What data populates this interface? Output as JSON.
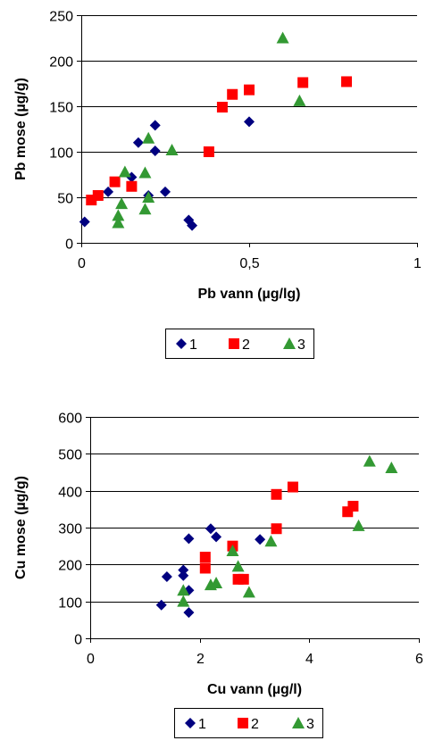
{
  "chart_data": [
    {
      "type": "scatter",
      "title": "",
      "xlabel": "Pb vann (µg/lg)",
      "ylabel": "Pb mose (µg/g)",
      "xlim": [
        0,
        1
      ],
      "ylim": [
        0,
        250
      ],
      "x_ticks": [
        0,
        0.5,
        1
      ],
      "x_tick_labels": [
        "0",
        "0,5",
        "1"
      ],
      "y_ticks": [
        0,
        50,
        100,
        150,
        200,
        250
      ],
      "y_tick_labels": [
        "0",
        "50",
        "100",
        "150",
        "200",
        "250"
      ],
      "grid": "horizontal",
      "legend_position": "bottom",
      "series": [
        {
          "name": "1",
          "marker": "diamond",
          "color": "#000080",
          "points": [
            [
              0.01,
              23
            ],
            [
              0.08,
              56
            ],
            [
              0.15,
              72
            ],
            [
              0.17,
              110
            ],
            [
              0.2,
              52
            ],
            [
              0.22,
              129
            ],
            [
              0.22,
              101
            ],
            [
              0.25,
              56
            ],
            [
              0.32,
              25
            ],
            [
              0.33,
              19
            ],
            [
              0.5,
              133
            ]
          ]
        },
        {
          "name": "2",
          "marker": "square",
          "color": "#ff0000",
          "points": [
            [
              0.03,
              47
            ],
            [
              0.05,
              52
            ],
            [
              0.1,
              67
            ],
            [
              0.15,
              62
            ],
            [
              0.38,
              100
            ],
            [
              0.42,
              149
            ],
            [
              0.45,
              163
            ],
            [
              0.5,
              168
            ],
            [
              0.66,
              176
            ],
            [
              0.79,
              177
            ]
          ]
        },
        {
          "name": "3",
          "marker": "triangle",
          "color": "#339933",
          "points": [
            [
              0.11,
              22
            ],
            [
              0.11,
              30
            ],
            [
              0.12,
              43
            ],
            [
              0.13,
              78
            ],
            [
              0.19,
              37
            ],
            [
              0.19,
              77
            ],
            [
              0.2,
              115
            ],
            [
              0.2,
              50
            ],
            [
              0.27,
              102
            ],
            [
              0.6,
              225
            ],
            [
              0.65,
              156
            ]
          ]
        }
      ]
    },
    {
      "type": "scatter",
      "title": "",
      "xlabel": "Cu vann (µg/l)",
      "ylabel": "Cu mose (µg/g)",
      "xlim": [
        0,
        6
      ],
      "ylim": [
        0,
        600
      ],
      "x_ticks": [
        0,
        2,
        4,
        6
      ],
      "x_tick_labels": [
        "0",
        "2",
        "4",
        "6"
      ],
      "y_ticks": [
        0,
        100,
        200,
        300,
        400,
        500,
        600
      ],
      "y_tick_labels": [
        "0",
        "100",
        "200",
        "300",
        "400",
        "500",
        "600"
      ],
      "grid": "horizontal",
      "legend_position": "bottom",
      "series": [
        {
          "name": "1",
          "marker": "diamond",
          "color": "#000080",
          "points": [
            [
              1.3,
              90
            ],
            [
              1.4,
              167
            ],
            [
              1.7,
              185
            ],
            [
              1.7,
              170
            ],
            [
              1.8,
              270
            ],
            [
              1.8,
              130
            ],
            [
              1.8,
              70
            ],
            [
              2.2,
              297
            ],
            [
              2.3,
              275
            ],
            [
              3.1,
              268
            ]
          ]
        },
        {
          "name": "2",
          "marker": "square",
          "color": "#ff0000",
          "points": [
            [
              2.1,
              220
            ],
            [
              2.1,
              190
            ],
            [
              2.6,
              250
            ],
            [
              2.7,
              160
            ],
            [
              2.8,
              160
            ],
            [
              3.4,
              390
            ],
            [
              3.4,
              297
            ],
            [
              3.7,
              410
            ],
            [
              4.7,
              343
            ],
            [
              4.8,
              358
            ]
          ]
        },
        {
          "name": "3",
          "marker": "triangle",
          "color": "#339933",
          "points": [
            [
              1.7,
              130
            ],
            [
              1.7,
              100
            ],
            [
              2.2,
              145
            ],
            [
              2.3,
              150
            ],
            [
              2.6,
              237
            ],
            [
              2.7,
              195
            ],
            [
              2.9,
              125
            ],
            [
              3.3,
              263
            ],
            [
              4.9,
              305
            ],
            [
              5.1,
              480
            ],
            [
              5.5,
              462
            ]
          ]
        }
      ]
    }
  ]
}
